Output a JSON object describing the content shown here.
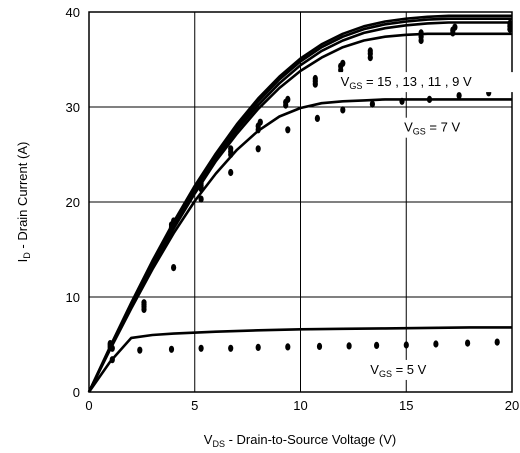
{
  "chart_data": {
    "type": "line",
    "title": "",
    "xlabel": {
      "main": "V",
      "sub": "DS",
      "rest": " - Drain-to-Source Voltage (V)"
    },
    "ylabel": {
      "main": "I",
      "sub": "D",
      "rest": " - Drain Current (A)"
    },
    "xlim": [
      0,
      20
    ],
    "ylim": [
      0,
      40
    ],
    "xticks": [
      0,
      5,
      10,
      15,
      20
    ],
    "yticks": [
      0,
      10,
      20,
      30,
      40
    ],
    "grid": true,
    "annotations": [
      {
        "id": "ann-vgs-high",
        "main": "V",
        "sub": "GS",
        "rest": " = 15 , 13 , 11 , 9 V",
        "x": 11.9,
        "y": 32.2
      },
      {
        "id": "ann-vgs-7",
        "main": "V",
        "sub": "GS",
        "rest": " = 7 V",
        "x": 14.9,
        "y": 27.4
      },
      {
        "id": "ann-vgs-5",
        "main": "V",
        "sub": "GS",
        "rest": " = 5 V",
        "x": 13.3,
        "y": 1.9
      }
    ],
    "series": [
      {
        "style": "line",
        "x": [
          0,
          1,
          2,
          3,
          4,
          5,
          6,
          7,
          8,
          9,
          10,
          11,
          12,
          13,
          14,
          15,
          16,
          17,
          18,
          19,
          20
        ],
        "y": [
          0,
          4.8,
          9.4,
          13.8,
          17.9,
          21.7,
          25.1,
          28.2,
          30.9,
          33.2,
          35.1,
          36.6,
          37.7,
          38.5,
          39.0,
          39.3,
          39.5,
          39.6,
          39.6,
          39.6,
          39.6
        ]
      },
      {
        "style": "line",
        "x": [
          0,
          1,
          2,
          3,
          4,
          5,
          6,
          7,
          8,
          9,
          10,
          11,
          12,
          13,
          14,
          15,
          16,
          17,
          18,
          19,
          20
        ],
        "y": [
          0,
          4.7,
          9.3,
          13.6,
          17.7,
          21.5,
          24.9,
          27.9,
          30.6,
          32.9,
          34.8,
          36.3,
          37.4,
          38.2,
          38.7,
          39.0,
          39.2,
          39.3,
          39.3,
          39.3,
          39.3
        ]
      },
      {
        "style": "line",
        "x": [
          0,
          1,
          2,
          3,
          4,
          5,
          6,
          7,
          8,
          9,
          10,
          11,
          12,
          13,
          14,
          15,
          16,
          17,
          18,
          19,
          20
        ],
        "y": [
          0,
          4.6,
          9.1,
          13.4,
          17.5,
          21.2,
          24.6,
          27.6,
          30.2,
          32.5,
          34.4,
          35.9,
          37.0,
          37.8,
          38.3,
          38.6,
          38.8,
          38.9,
          38.9,
          38.9,
          38.9
        ]
      },
      {
        "style": "line",
        "x": [
          0,
          1,
          2,
          3,
          4,
          5,
          6,
          7,
          8,
          9,
          10,
          11,
          12,
          13,
          14,
          15,
          16,
          17,
          18,
          19,
          20
        ],
        "y": [
          0,
          4.6,
          9.0,
          13.2,
          17.2,
          20.9,
          24.3,
          27.2,
          29.8,
          32.0,
          33.8,
          35.2,
          36.3,
          37.0,
          37.4,
          37.6,
          37.7,
          37.7,
          37.7,
          37.7,
          37.7
        ]
      },
      {
        "style": "line",
        "x": [
          0,
          1,
          2,
          3,
          4,
          5,
          6,
          7,
          8,
          9,
          10,
          11,
          12,
          13,
          14,
          15,
          16,
          17,
          18,
          19,
          20
        ],
        "y": [
          0,
          4.5,
          8.8,
          12.9,
          16.7,
          20.1,
          23.0,
          25.5,
          27.5,
          29.0,
          29.9,
          30.4,
          30.6,
          30.7,
          30.8,
          30.8,
          30.8,
          30.8,
          30.8,
          30.8,
          30.8
        ]
      },
      {
        "style": "line",
        "x": [
          0,
          1,
          2,
          3,
          4,
          6,
          8,
          10,
          12,
          14,
          16,
          18,
          20
        ],
        "y": [
          0,
          3.2,
          5.7,
          6.0,
          6.15,
          6.35,
          6.5,
          6.6,
          6.65,
          6.7,
          6.75,
          6.8,
          6.8
        ]
      },
      {
        "style": "dots",
        "x": [
          1.0,
          1.0,
          1.0,
          2.6,
          2.6,
          2.6,
          3.9,
          3.9,
          4.0,
          5.3,
          5.3,
          5.3,
          6.7,
          6.7,
          6.7,
          8.0,
          8.0,
          8.1,
          9.3,
          9.3,
          9.4,
          10.7,
          10.7,
          10.7,
          11.9,
          11.9,
          12.0,
          13.3,
          13.3,
          13.3,
          15.7,
          15.7,
          15.7,
          17.2,
          17.2,
          17.3,
          19.9,
          19.9,
          19.9
        ],
        "y": [
          4.7,
          4.9,
          5.1,
          9.0,
          9.2,
          9.4,
          17.3,
          17.6,
          18.0,
          21.4,
          21.7,
          22.0,
          25.0,
          25.3,
          25.6,
          27.6,
          28.0,
          28.4,
          30.2,
          30.5,
          30.8,
          32.4,
          32.7,
          33.0,
          33.9,
          34.3,
          34.6,
          35.2,
          35.6,
          35.9,
          37.0,
          37.4,
          37.8,
          37.8,
          38.1,
          38.4,
          38.2,
          38.5,
          38.8
        ]
      },
      {
        "style": "dots",
        "x": [
          1.1,
          2.6,
          4.0,
          5.3,
          6.7,
          8.0,
          9.4,
          10.8,
          12.0,
          13.4,
          14.8,
          16.1,
          17.5,
          18.9
        ],
        "y": [
          4.6,
          8.7,
          13.1,
          20.3,
          23.1,
          25.6,
          27.6,
          28.8,
          29.7,
          30.3,
          30.6,
          30.8,
          31.2,
          31.5
        ]
      },
      {
        "style": "dots",
        "x": [
          1.1,
          2.4,
          3.9,
          5.3,
          6.7,
          8.0,
          9.4,
          10.9,
          12.3,
          13.6,
          15.0,
          16.4,
          17.9,
          19.3
        ],
        "y": [
          3.4,
          4.4,
          4.5,
          4.6,
          4.6,
          4.7,
          4.75,
          4.8,
          4.85,
          4.9,
          4.95,
          5.05,
          5.15,
          5.25
        ]
      }
    ]
  }
}
